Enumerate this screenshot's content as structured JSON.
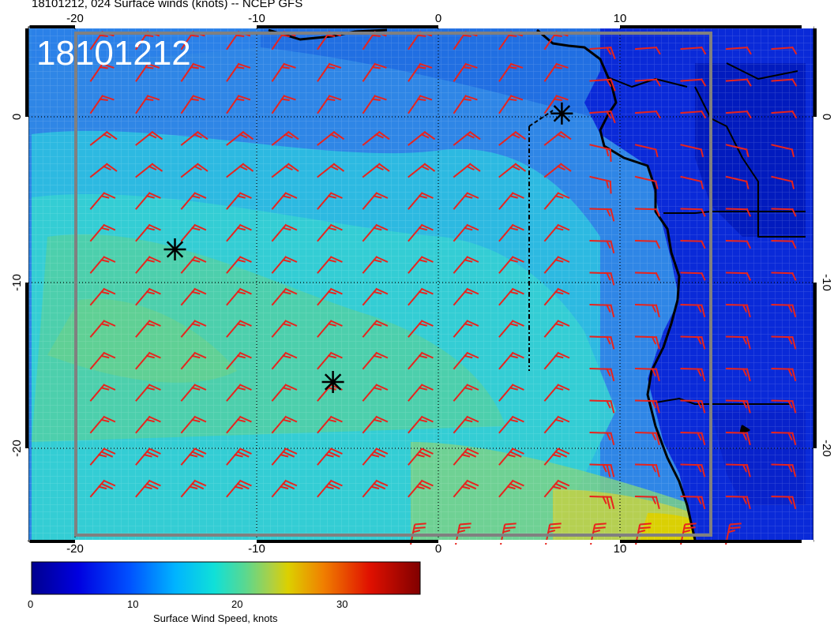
{
  "title": "18101212, 024 Surface winds (knots) -- NCEP GFS",
  "datetime_label": "18101212",
  "map": {
    "lon_ticks": [
      "-20",
      "-10",
      "0",
      "10"
    ],
    "lat_ticks": [
      "0",
      "-10",
      "-20"
    ],
    "storm_markers": [
      {
        "lon": 6.8,
        "lat": 0.2
      },
      {
        "lon": -14.5,
        "lat": -8.0
      },
      {
        "lon": -5.8,
        "lat": -16.0
      }
    ]
  },
  "colorbar": {
    "title": "Surface Wind Speed, knots",
    "tick_labels": [
      "0",
      "10",
      "20",
      "30"
    ],
    "min": 0,
    "max": 37
  },
  "colors": {
    "barb": "#e8231d",
    "coast": "#000000",
    "frame": "#808080"
  }
}
